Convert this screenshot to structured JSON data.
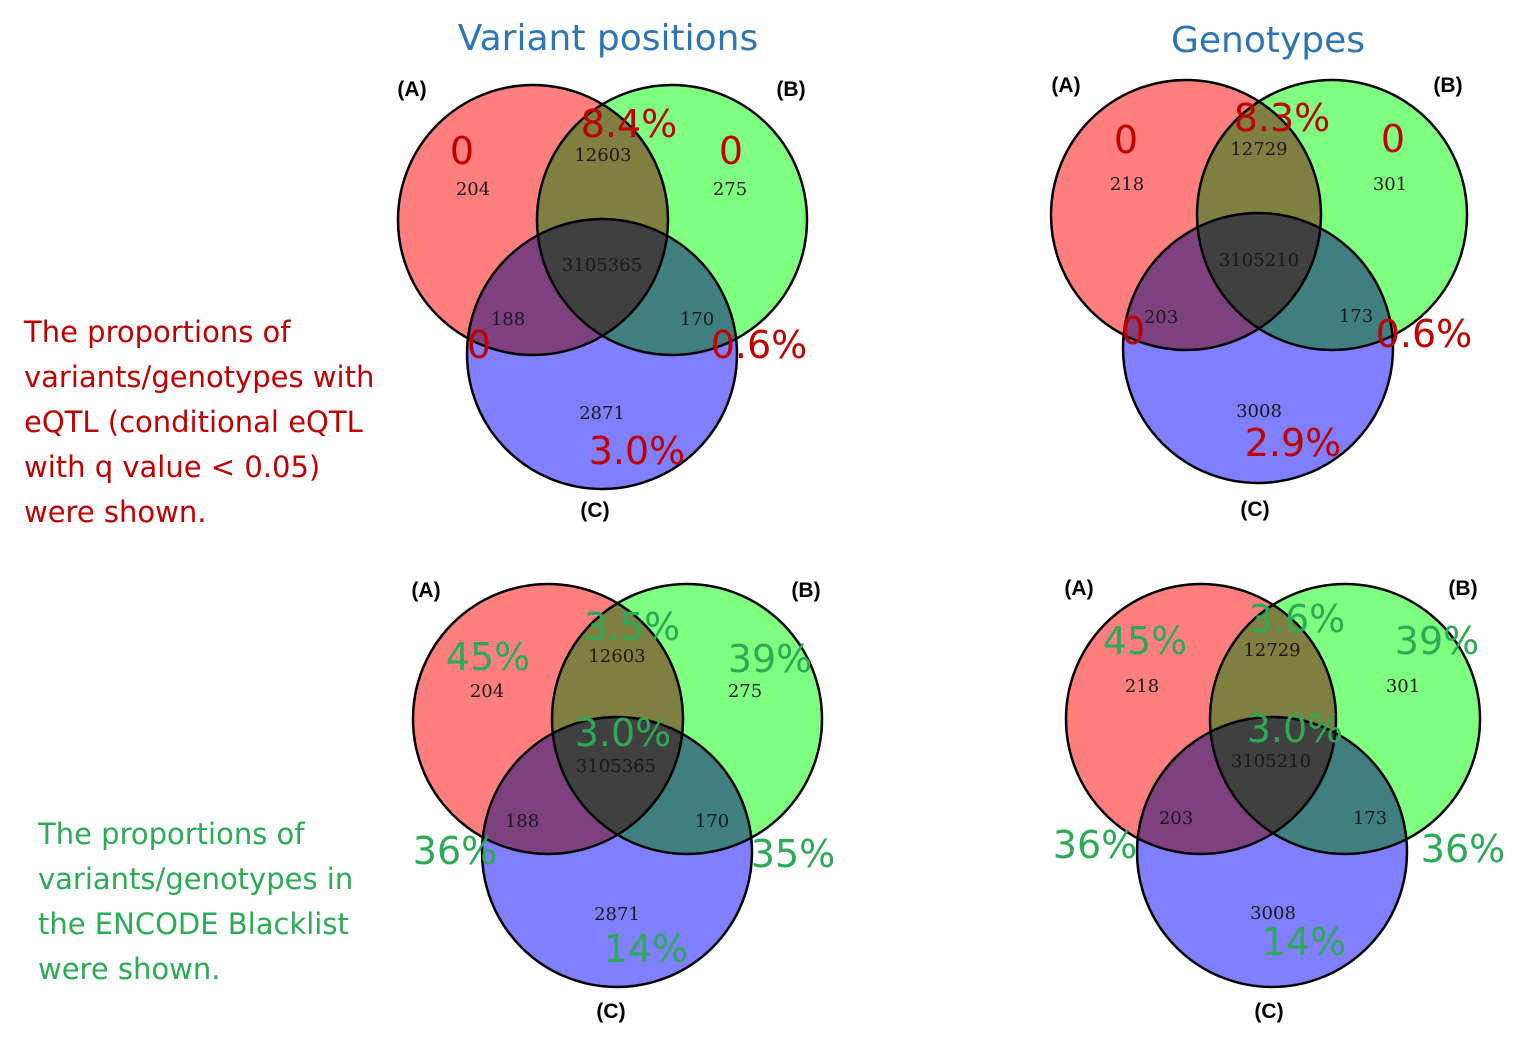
{
  "titles": {
    "left": "Variant positions",
    "right": "Genotypes"
  },
  "notes": {
    "red": [
      "The proportions of",
      "variants/genotypes with",
      "eQTL (conditional eQTL",
      "with q value < 0.05)",
      "were shown."
    ],
    "green": [
      "The proportions of",
      "variants/genotypes in",
      "the ENCODE Blacklist",
      "were shown."
    ]
  },
  "colors": {
    "set_a": "#ff7f7f",
    "set_b": "#7fff7f",
    "set_c": "#7f7fff",
    "note_red": "#c00000",
    "note_green": "#2bab55",
    "title_blue": "#2e75b6"
  },
  "set_labels": [
    "(A)",
    "(B)",
    "(C)"
  ],
  "venns": [
    {
      "id": "variant-positions-eqtl",
      "counts": {
        "a": "204",
        "ab": "12603",
        "b": "275",
        "abc": "3105365",
        "ac": "188",
        "bc": "170",
        "c": "2871"
      },
      "percent_color": "red",
      "percents": {
        "a": "0",
        "ab": "8.4%",
        "b": "0",
        "ac": "0",
        "bc": "0.6%",
        "c": "3.0%"
      }
    },
    {
      "id": "genotypes-eqtl",
      "counts": {
        "a": "218",
        "ab": "12729",
        "b": "301",
        "abc": "3105210",
        "ac": "203",
        "bc": "173",
        "c": "3008"
      },
      "percent_color": "red",
      "percents": {
        "a": "0",
        "ab": "8.3%",
        "b": "0",
        "ac": "0",
        "bc": "0.6%",
        "c": "2.9%"
      }
    },
    {
      "id": "variant-positions-blacklist",
      "counts": {
        "a": "204",
        "ab": "12603",
        "b": "275",
        "abc": "3105365",
        "ac": "188",
        "bc": "170",
        "c": "2871"
      },
      "percent_color": "green",
      "percents": {
        "a": "45%",
        "ab": "3.5%",
        "b": "39%",
        "abc": "3.0%",
        "ac": "36%",
        "bc": "35%",
        "c": "14%"
      }
    },
    {
      "id": "genotypes-blacklist",
      "counts": {
        "a": "218",
        "ab": "12729",
        "b": "301",
        "abc": "3105210",
        "ac": "203",
        "bc": "173",
        "c": "3008"
      },
      "percent_color": "green",
      "percents": {
        "a": "45%",
        "ab": "3.6%",
        "b": "39%",
        "abc": "3.0%",
        "ac": "36%",
        "bc": "36%",
        "c": "14%"
      }
    }
  ]
}
